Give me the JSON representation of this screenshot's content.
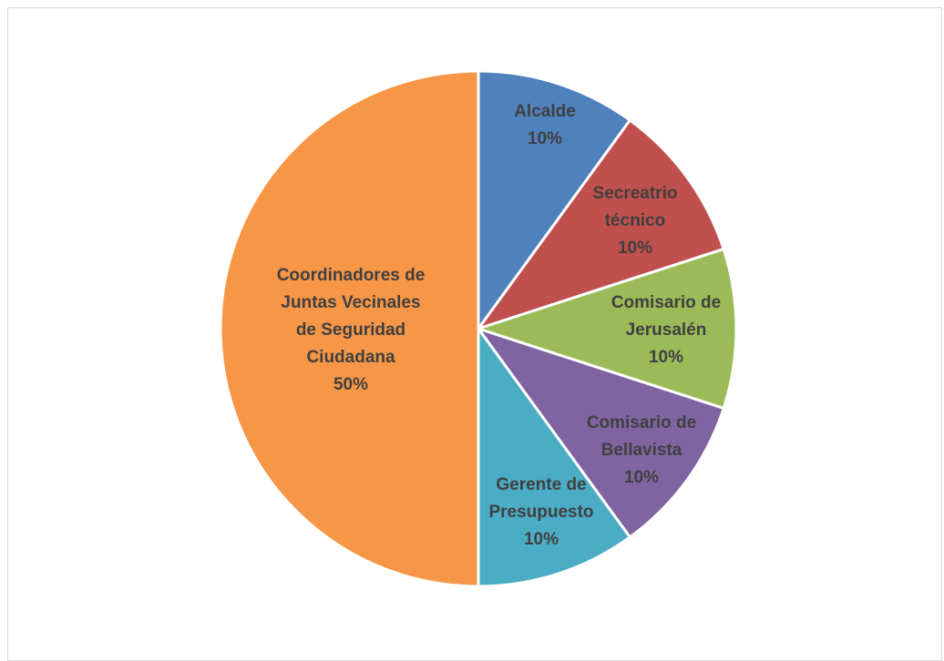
{
  "chart_data": {
    "type": "pie",
    "title": "",
    "slices": [
      {
        "label": [
          "Alcalde"
        ],
        "value": 10,
        "percent": "10%",
        "color": "#4f81bd"
      },
      {
        "label": [
          "Secreatrio",
          "técnico"
        ],
        "value": 10,
        "percent": "10%",
        "color": "#c0504d"
      },
      {
        "label": [
          "Comisario de",
          "Jerusalén"
        ],
        "value": 10,
        "percent": "10%",
        "color": "#9bbb59"
      },
      {
        "label": [
          "Comisario de",
          "Bellavista"
        ],
        "value": 10,
        "percent": "10%",
        "color": "#8064a2"
      },
      {
        "label": [
          "Gerente de",
          "Presupuesto"
        ],
        "value": 10,
        "percent": "10%",
        "color": "#4bacc6"
      },
      {
        "label": [
          "Coordinadores de",
          "Juntas Vecinales",
          "de Seguridad",
          "Ciudadana"
        ],
        "value": 50,
        "percent": "50%",
        "color": "#f79646"
      }
    ]
  }
}
